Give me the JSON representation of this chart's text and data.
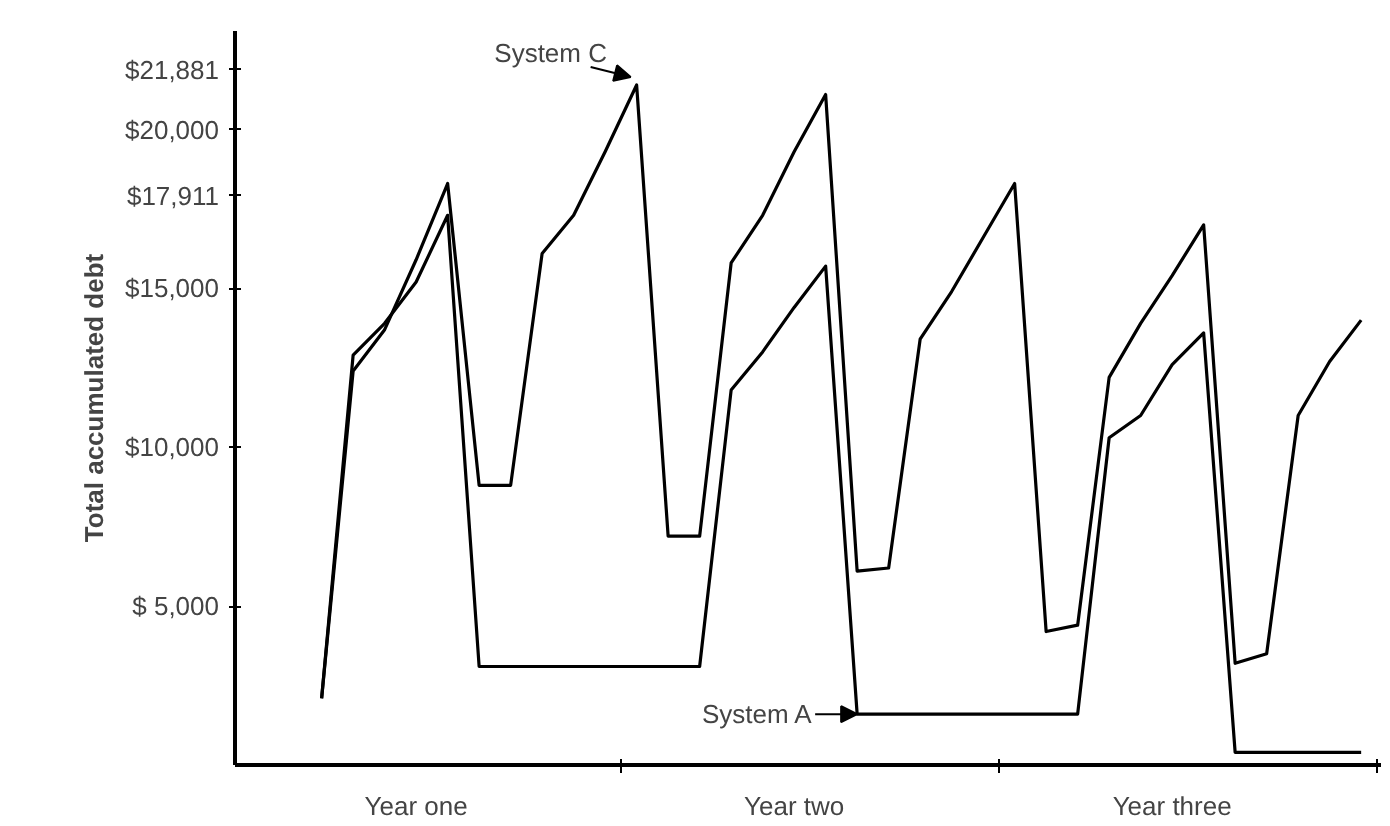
{
  "chart_data": {
    "type": "line",
    "ylabel": "Total accumulated debt",
    "categories": [
      null,
      null,
      null,
      null,
      null,
      "Year one",
      null,
      null,
      null,
      null,
      null,
      null,
      null,
      null,
      null,
      null,
      null,
      "Year two",
      null,
      null,
      null,
      null,
      null,
      null,
      null,
      null,
      null,
      null,
      null,
      "Year three",
      null,
      null,
      null,
      null,
      null,
      null
    ],
    "ylim": [
      0,
      23100
    ],
    "yticks": [
      {
        "value": 5000,
        "label": "$ 5,000"
      },
      {
        "value": 10000,
        "label": "$10,000"
      },
      {
        "value": 15000,
        "label": "$15,000"
      },
      {
        "value": 17911,
        "label": "$17,911"
      },
      {
        "value": 20000,
        "label": "$20,000"
      },
      {
        "value": 21881,
        "label": "$21,881"
      }
    ],
    "grid": false,
    "marker": "none",
    "line_style": "solid",
    "series": [
      {
        "name": "System C",
        "color": "#000000",
        "values": [
          null,
          null,
          2100,
          12400,
          13700,
          15900,
          18300,
          8800,
          8800,
          16100,
          17300,
          19300,
          21400,
          7200,
          7200,
          15800,
          17300,
          19300,
          21100,
          6100,
          6200,
          13400,
          14900,
          16600,
          18300,
          4200,
          4400,
          12200,
          13900,
          15400,
          17000,
          3200,
          3500,
          11000,
          12700,
          14000
        ]
      },
      {
        "name": "System A",
        "color": "#000000",
        "values": [
          null,
          null,
          2100,
          12900,
          13900,
          15200,
          17300,
          3100,
          3100,
          3100,
          3100,
          3100,
          3100,
          3100,
          3100,
          11800,
          13000,
          14400,
          15700,
          1600,
          1600,
          1600,
          1600,
          1600,
          1600,
          1600,
          1600,
          10300,
          11000,
          12600,
          13600,
          400,
          400,
          400,
          400,
          400
        ]
      }
    ]
  }
}
